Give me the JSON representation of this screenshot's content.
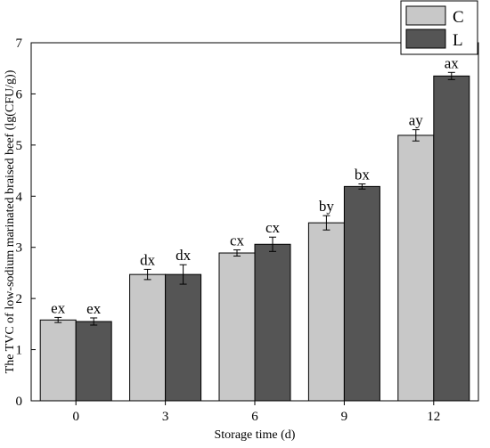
{
  "chart_data": {
    "type": "bar",
    "title": "",
    "xlabel": "Storage time (d)",
    "ylabel": "The TVC of low-sodium marinated braised beef (lg(CFU/g))",
    "categories": [
      "0",
      "3",
      "6",
      "9",
      "12"
    ],
    "ylim": [
      0,
      7
    ],
    "yticks": [
      0,
      1,
      2,
      3,
      4,
      5,
      6,
      7
    ],
    "grid": false,
    "legend_position": "top-right",
    "series": [
      {
        "name": "C",
        "color": "#c8c8c8",
        "values": [
          1.58,
          2.47,
          2.89,
          3.48,
          5.19
        ],
        "errors": [
          0.05,
          0.1,
          0.06,
          0.14,
          0.11
        ],
        "labels": [
          "ex",
          "dx",
          "cx",
          "by",
          "ay"
        ]
      },
      {
        "name": "L",
        "color": "#555555",
        "values": [
          1.55,
          2.47,
          3.06,
          4.19,
          6.35
        ],
        "errors": [
          0.07,
          0.19,
          0.14,
          0.05,
          0.07
        ],
        "labels": [
          "ex",
          "dx",
          "cx",
          "bx",
          "ax"
        ]
      }
    ]
  }
}
